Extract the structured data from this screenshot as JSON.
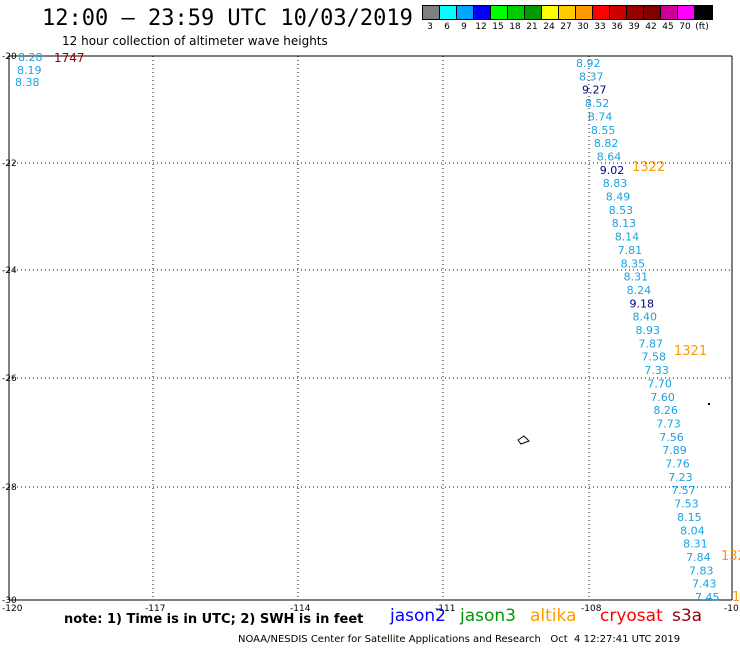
{
  "header": {
    "title": "12:00 – 23:59 UTC 10/03/2019",
    "subtitle": "12 hour collection of altimeter wave heights"
  },
  "legend": {
    "colors": [
      "#7f7f7f",
      "#00ffff",
      "#00a5ff",
      "#0000ff",
      "#00ff00",
      "#00cc00",
      "#009900",
      "#ffff00",
      "#ffcc00",
      "#ff9900",
      "#ff0000",
      "#cc0000",
      "#990000",
      "#800000",
      "#cc0099",
      "#ff00ff",
      "#000000"
    ],
    "labels": [
      "3",
      "6",
      "9",
      "12",
      "15",
      "18",
      "21",
      "24",
      "27",
      "30",
      "33",
      "36",
      "39",
      "42",
      "45",
      "70",
      "(ft)"
    ]
  },
  "axes": {
    "lon_labels": [
      "-120",
      "-117",
      "-114",
      "-111",
      "-108",
      "-10"
    ],
    "lat_labels": [
      "-20",
      "-22",
      "-24",
      "-26",
      "-28",
      "-30"
    ]
  },
  "track_a": {
    "color": "#1aa3e0",
    "values": [
      "8.28",
      "8.19",
      "8.38"
    ],
    "time_label": "1747",
    "time_color": "#990000"
  },
  "track_b": {
    "color": "#1aa3e0",
    "values": [
      "8.92",
      "8.37",
      "9.27",
      "8.52",
      "8.74",
      "8.55",
      "8.82",
      "8.64",
      "9.02",
      "8.83",
      "8.49",
      "8.53",
      "8.13",
      "8.14",
      "7.81",
      "8.35",
      "8.31",
      "8.24",
      "9.18",
      "8.40",
      "8.93",
      "7.87",
      "7.58",
      "7.33",
      "7.70",
      "7.60",
      "8.26",
      "7.73",
      "7.56",
      "7.89",
      "7.76",
      "7.23",
      "7.57",
      "7.53",
      "8.15",
      "8.04",
      "8.31",
      "7.84",
      "7.83",
      "7.43",
      "7.45"
    ],
    "dark_values": [
      "9.27",
      "9.02",
      "9.18"
    ],
    "dark_color": "#000080",
    "time_labels": [
      "1322",
      "1321",
      "132",
      "1"
    ],
    "time_color": "#ff9900"
  },
  "footer": {
    "note": "note: 1) Time is in UTC; 2) SWH is in feet",
    "missions": [
      {
        "name": "jason2",
        "color": "#0000ff"
      },
      {
        "name": "jason3",
        "color": "#009900"
      },
      {
        "name": "altika",
        "color": "#ff9900"
      },
      {
        "name": "cryosat",
        "color": "#ff0000"
      },
      {
        "name": "s3a",
        "color": "#990000"
      }
    ],
    "credit": "NOAA/NESDIS Center for Satellite Applications and Research   Oct  4 12:27:41 UTC 2019"
  }
}
